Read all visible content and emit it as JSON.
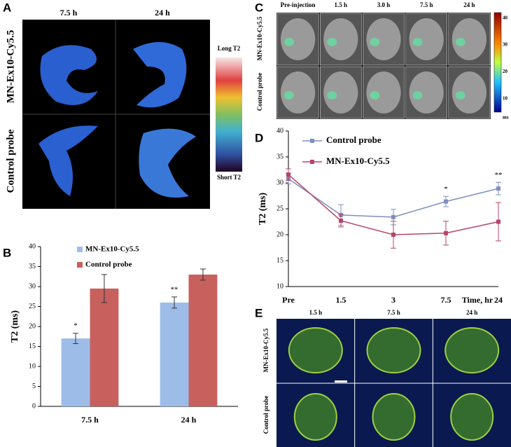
{
  "panels": {
    "a": {
      "letter": "A",
      "columns": [
        "7.5 h",
        "24 h"
      ],
      "rows": [
        "MN-Ex10-Cy5.5",
        "Control probe"
      ],
      "colorbar_top": "Long T2",
      "colorbar_bottom": "Short T2"
    },
    "c": {
      "letter": "C",
      "columns": [
        "Pre-injection",
        "1.5 h",
        "3.0 h",
        "7.5 h",
        "24 h"
      ],
      "rows": [
        "MN-Ex10-Cy5.5",
        "Control probe"
      ],
      "colorbar_ticks": [
        40,
        30,
        20,
        10
      ],
      "colorbar_unit": "ms"
    },
    "e": {
      "letter": "E",
      "columns": [
        "1.5 h",
        "7.5 h",
        "24 h"
      ],
      "rows": [
        "MN-Ex10-Cy5.5",
        "Control probe"
      ]
    }
  },
  "chart_data": [
    {
      "type": "bar",
      "letter": "B",
      "y_label": "T2 (ms)",
      "categories": [
        "7.5 h",
        "24 h"
      ],
      "series": [
        {
          "name": "MN-Ex10-Cy5.5",
          "color": "#9dbde8",
          "values": [
            17,
            26
          ],
          "errors": [
            1.3,
            1.4
          ]
        },
        {
          "name": "Control probe",
          "color": "#c8605d",
          "values": [
            29.5,
            33
          ],
          "errors": [
            3.5,
            1.4
          ]
        }
      ],
      "significance": [
        "*",
        "**"
      ],
      "ylim": [
        0,
        40
      ],
      "yticks": [
        0,
        5,
        10,
        15,
        20,
        25,
        30,
        35,
        40
      ]
    },
    {
      "type": "line",
      "letter": "D",
      "y_label": "T2 (ms)",
      "x_label": "Time, hr",
      "categories": [
        "Pre",
        "1.5",
        "3",
        "7.5",
        "24"
      ],
      "series": [
        {
          "name": "Control probe",
          "color": "#7f8fc0",
          "values": [
            30.8,
            23.8,
            23.4,
            26.4,
            28.9
          ],
          "errors": [
            1,
            2,
            1.5,
            1,
            1.2
          ]
        },
        {
          "name": "MN-Ex10-Cy5.5",
          "color": "#b5466a",
          "values": [
            31.6,
            22.7,
            20,
            20.3,
            22.5
          ],
          "errors": [
            1.1,
            1.2,
            2.6,
            2.3,
            3.7
          ]
        }
      ],
      "significance": [
        null,
        null,
        null,
        "*",
        "**"
      ],
      "ylim": [
        10,
        40
      ],
      "yticks": [
        10,
        15,
        20,
        25,
        30,
        35,
        40
      ]
    }
  ]
}
